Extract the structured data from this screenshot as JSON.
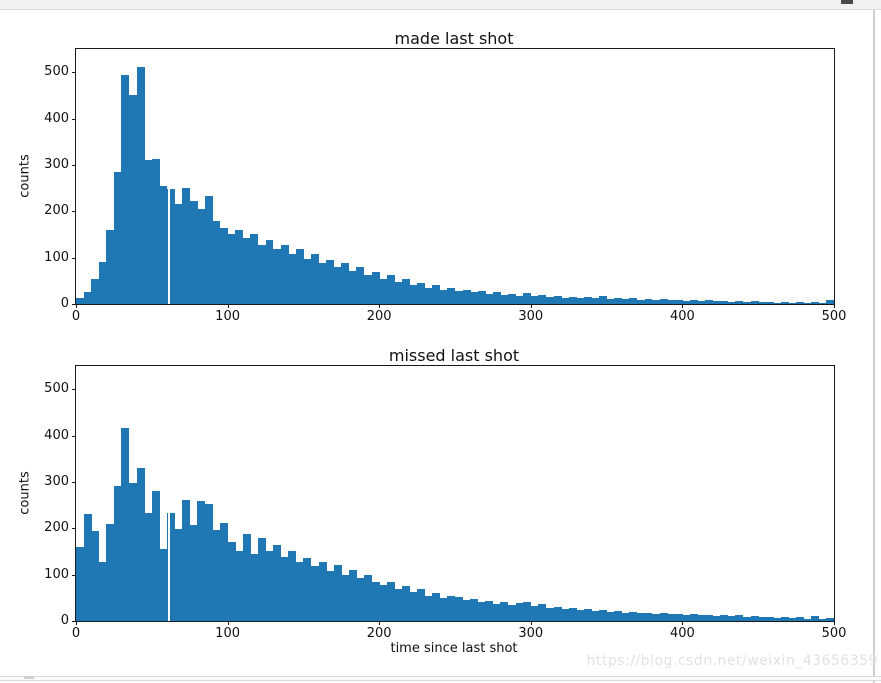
{
  "window": {
    "watermark": "https://blog.csdn.net/weixin_43656359"
  },
  "chart_data": [
    {
      "type": "bar",
      "title": "made last shot",
      "xlabel": "",
      "ylabel": "counts",
      "xlim": [
        0,
        500
      ],
      "ylim": [
        0,
        550
      ],
      "xticks": [
        0,
        100,
        200,
        300,
        400,
        500
      ],
      "yticks": [
        0,
        100,
        200,
        300,
        400,
        500
      ],
      "bin_start": 0,
      "bin_width": 5,
      "bar_color": "#1f77b4",
      "grid": false,
      "white_gap_x": 61,
      "values": [
        13,
        25,
        55,
        90,
        160,
        285,
        495,
        450,
        512,
        310,
        312,
        255,
        248,
        215,
        250,
        222,
        205,
        232,
        178,
        165,
        152,
        160,
        142,
        150,
        128,
        138,
        118,
        128,
        108,
        118,
        98,
        108,
        88,
        95,
        80,
        88,
        72,
        80,
        62,
        70,
        55,
        62,
        48,
        55,
        40,
        46,
        34,
        40,
        30,
        34,
        27,
        30,
        25,
        28,
        22,
        25,
        20,
        22,
        18,
        24,
        17,
        20,
        15,
        18,
        14,
        16,
        13,
        15,
        12,
        18,
        11,
        14,
        10,
        12,
        9,
        11,
        8,
        10,
        8,
        9,
        7,
        9,
        6,
        8,
        6,
        7,
        5,
        6,
        5,
        6,
        4,
        5,
        3,
        4,
        3,
        4,
        3,
        4,
        3,
        8
      ]
    },
    {
      "type": "bar",
      "title": "missed last shot",
      "xlabel": "time since last shot",
      "ylabel": "counts",
      "xlim": [
        0,
        500
      ],
      "ylim": [
        0,
        550
      ],
      "xticks": [
        0,
        100,
        200,
        300,
        400,
        500
      ],
      "yticks": [
        0,
        100,
        200,
        300,
        400,
        500
      ],
      "bin_start": 0,
      "bin_width": 5,
      "bar_color": "#1f77b4",
      "grid": false,
      "white_gap_x": 61,
      "values": [
        160,
        230,
        195,
        128,
        210,
        292,
        417,
        298,
        330,
        232,
        280,
        155,
        232,
        198,
        262,
        207,
        258,
        252,
        197,
        212,
        170,
        152,
        188,
        145,
        178,
        152,
        165,
        138,
        150,
        128,
        135,
        118,
        128,
        108,
        120,
        100,
        110,
        92,
        100,
        85,
        78,
        85,
        68,
        75,
        62,
        68,
        55,
        60,
        50,
        55,
        52,
        45,
        48,
        40,
        44,
        36,
        40,
        34,
        38,
        40,
        32,
        36,
        28,
        30,
        26,
        28,
        24,
        26,
        22,
        24,
        20,
        22,
        18,
        20,
        17,
        18,
        16,
        17,
        15,
        16,
        14,
        15,
        12,
        14,
        11,
        12,
        10,
        12,
        9,
        10,
        8,
        9,
        7,
        8,
        6,
        8,
        5,
        10,
        4,
        6
      ]
    }
  ]
}
